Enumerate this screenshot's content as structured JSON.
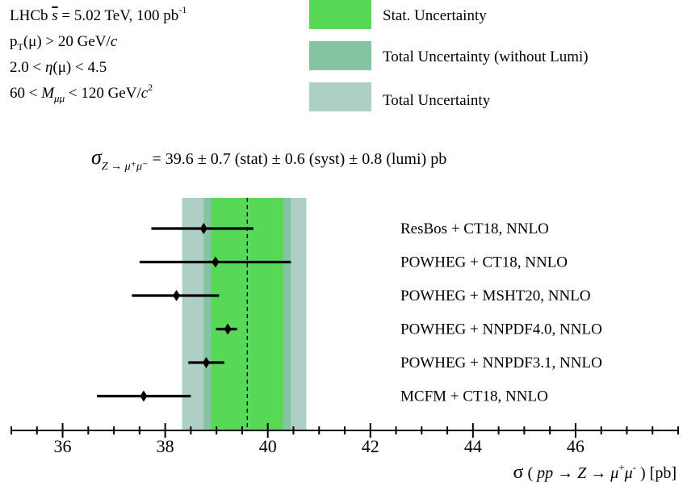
{
  "chart_data": {
    "type": "scatter",
    "orientation": "horizontal-error-bars",
    "info_lines": {
      "line1": {
        "pre": "LHCb ",
        "sqrt": "s",
        "mid": " = 5.02 TeV, 100 pb",
        "sup": "-1"
      },
      "line2": {
        "p": "p",
        "sub": "T",
        "rest": "(μ) > 20 GeV/",
        "c": "c"
      },
      "line3": {
        "pre": "2.0 < ",
        "eta": "η",
        "rest": "(μ) < 4.5"
      },
      "line4": {
        "pre": "60 < ",
        "M": "M",
        "sub": "μμ",
        "rest": " < 120 GeV/",
        "c": "c",
        "sup": "2"
      }
    },
    "legend": [
      {
        "label": "Stat. Uncertainty",
        "color": "#57d957"
      },
      {
        "label": "Total Uncertainty (without Lumi)",
        "color": "#85c4a3"
      },
      {
        "label": "Total Uncertainty",
        "color": "#adcfc6"
      }
    ],
    "measurement_text": {
      "sigma": "σ",
      "sub": "Z → μ⁺μ⁻",
      "rest": " = 39.6 ± 0.7 (stat) ± 0.6 (syst) ± 0.8 (lumi)  pb"
    },
    "measurement": {
      "value": 39.6,
      "stat": 0.7,
      "syst": 0.6,
      "lumi": 0.8
    },
    "bands": {
      "total": [
        38.33,
        40.75
      ],
      "total_no_lumi": [
        38.75,
        40.45
      ],
      "stat": [
        38.9,
        40.3
      ]
    },
    "points": [
      {
        "label": "ResBos + CT18, NNLO",
        "value": 38.75,
        "low": 37.73,
        "high": 39.72
      },
      {
        "label": "POWHEG + CT18, NNLO",
        "value": 38.98,
        "low": 37.5,
        "high": 40.45
      },
      {
        "label": "POWHEG + MSHT20, NNLO",
        "value": 38.22,
        "low": 37.35,
        "high": 39.05
      },
      {
        "label": "POWHEG + NNPDF4.0, NNLO",
        "value": 39.22,
        "low": 38.99,
        "high": 39.4
      },
      {
        "label": "POWHEG + NNPDF3.1, NNLO",
        "value": 38.8,
        "low": 38.45,
        "high": 39.15
      },
      {
        "label": "MCFM + CT18, NNLO",
        "value": 37.58,
        "low": 36.67,
        "high": 38.5
      }
    ],
    "xlim": [
      35,
      48
    ],
    "major_ticks": [
      36,
      38,
      40,
      42,
      44,
      46
    ],
    "major_tick_labels": [
      "36",
      "38",
      "40",
      "42",
      "44",
      "46"
    ],
    "minor_step": 0.5,
    "xlabel": {
      "sigma": "σ",
      "open": " ( ",
      "pp": "pp",
      "arrow1": "  → ",
      "Z": "Z",
      "arrow2": "  → ",
      "mu": "μ",
      "sup": "+",
      "mu2": "μ",
      "sup2": "-",
      "close": " )  [pb]"
    },
    "grid": false
  }
}
